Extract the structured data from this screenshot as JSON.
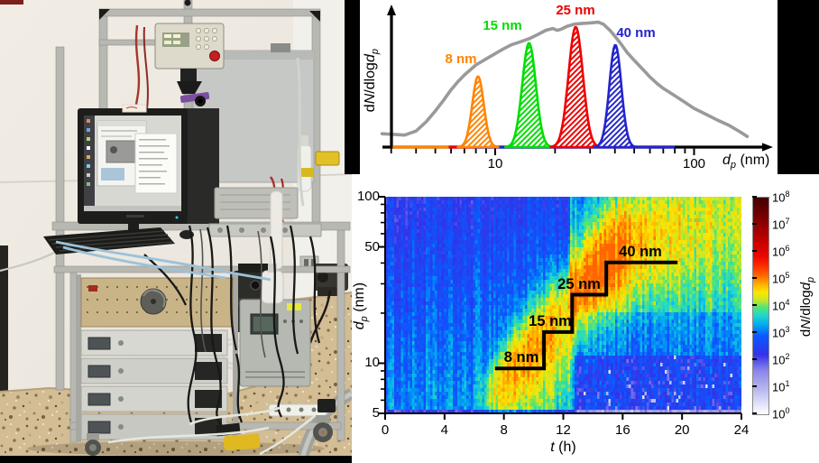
{
  "photo": {
    "description": "Photograph of a laboratory aerosol measurement setup: aluminium-profile cart with monitor, keyboard, control box, rack-mounted instruments, CPC, tubing and cables on a terrazzo floor"
  },
  "chart_data": [
    {
      "id": "size_distribution",
      "type": "line",
      "title": "",
      "xlabel": "{i:d}{sub:p} (nm)",
      "ylabel": "d{i:N}/dlog{i:d}{sub:p}",
      "x_scale": "log",
      "x_range": [
        2.7,
        200
      ],
      "x_major_ticks": [
        10,
        100
      ],
      "x_minor_ticks": [
        3,
        4,
        5,
        6,
        7,
        8,
        9,
        20,
        30,
        40,
        50,
        60,
        70,
        80,
        90
      ],
      "grid": false,
      "gray_curve": {
        "name": "ambient total size distribution",
        "color": "#9a9a9a",
        "points": [
          [
            2.7,
            0.1
          ],
          [
            3.1,
            0.095
          ],
          [
            3.5,
            0.09
          ],
          [
            4,
            0.12
          ],
          [
            4.5,
            0.19
          ],
          [
            5,
            0.27
          ],
          [
            5.5,
            0.35
          ],
          [
            6,
            0.43
          ],
          [
            6.5,
            0.49
          ],
          [
            7,
            0.54
          ],
          [
            8,
            0.615
          ],
          [
            9,
            0.66
          ],
          [
            10,
            0.7
          ],
          [
            11,
            0.735
          ],
          [
            12,
            0.765
          ],
          [
            13.5,
            0.79
          ],
          [
            15,
            0.815
          ],
          [
            16.5,
            0.845
          ],
          [
            18,
            0.875
          ],
          [
            19.5,
            0.888
          ],
          [
            20.5,
            0.874
          ],
          [
            21.5,
            0.883
          ],
          [
            23,
            0.905
          ],
          [
            25,
            0.92
          ],
          [
            27,
            0.925
          ],
          [
            30,
            0.93
          ],
          [
            33,
            0.935
          ],
          [
            35,
            0.92
          ],
          [
            38,
            0.87
          ],
          [
            40,
            0.83
          ],
          [
            43,
            0.77
          ],
          [
            46,
            0.71
          ],
          [
            50,
            0.65
          ],
          [
            55,
            0.585
          ],
          [
            60,
            0.525
          ],
          [
            65,
            0.478
          ],
          [
            70,
            0.44
          ],
          [
            80,
            0.385
          ],
          [
            90,
            0.335
          ],
          [
            100,
            0.29
          ],
          [
            115,
            0.245
          ],
          [
            130,
            0.205
          ],
          [
            150,
            0.163
          ],
          [
            170,
            0.115
          ],
          [
            185,
            0.08
          ]
        ]
      },
      "peaks": [
        {
          "label": "8 nm",
          "center_nm": 8.2,
          "rel_height": 0.53,
          "sigma_log": 0.029,
          "color": "#ff8400",
          "label_x": 112,
          "label_y": 70
        },
        {
          "label": "15 nm",
          "center_nm": 14.8,
          "rel_height": 0.78,
          "sigma_log": 0.034,
          "color": "#00dd00",
          "label_x": 158,
          "label_y": 33
        },
        {
          "label": "25 nm",
          "center_nm": 25.4,
          "rel_height": 0.9,
          "sigma_log": 0.036,
          "color": "#ee0000",
          "label_x": 239,
          "label_y": 16
        },
        {
          "label": "40 nm",
          "center_nm": 40.2,
          "rel_height": 0.765,
          "sigma_log": 0.03,
          "color": "#2424cc",
          "label_x": 306,
          "label_y": 41
        }
      ],
      "baseline_segments": [
        {
          "dp0": 3.05,
          "dp1": 5.85,
          "color": "#ff8400"
        },
        {
          "dp0": 5.85,
          "dp1": 7.8,
          "color": "#ee0000"
        },
        {
          "dp0": 7.8,
          "dp1": 80,
          "color": "#2424cc"
        }
      ]
    },
    {
      "id": "banana_plot",
      "type": "heatmap",
      "xlabel": "{i:t} (h)",
      "ylabel": "{i:d}{sub:p} (nm)",
      "x_range": [
        0,
        24
      ],
      "x_ticks": [
        0,
        4,
        8,
        12,
        16,
        20,
        24
      ],
      "y_scale": "log",
      "y_range": [
        5,
        100
      ],
      "y_major_ticks": [
        5,
        10,
        50,
        100
      ],
      "y_minor_ticks": [
        6,
        7,
        8,
        9,
        20,
        30,
        40,
        60,
        70,
        80,
        90
      ],
      "colorbar": {
        "label": "d{i:N}/dlog{i:d}{sub:p}",
        "tick_exponents": [
          8,
          7,
          6,
          5,
          4,
          3,
          2,
          1,
          0
        ],
        "range_exp": [
          0,
          8
        ]
      },
      "colormap_stops": [
        [
          0,
          "#ffffff"
        ],
        [
          0.9,
          "#b9b9ef"
        ],
        [
          1.6,
          "#8c86ea"
        ],
        [
          2.2,
          "#3232e8"
        ],
        [
          2.9,
          "#0a5aff"
        ],
        [
          3.3,
          "#00aaf0"
        ],
        [
          3.65,
          "#22d6ce"
        ],
        [
          3.95,
          "#52e673"
        ],
        [
          4.2,
          "#c3e629"
        ],
        [
          4.5,
          "#ffe600"
        ],
        [
          4.8,
          "#ffb000"
        ],
        [
          5.1,
          "#ff6e00"
        ],
        [
          5.45,
          "#ff3000"
        ],
        [
          5.8,
          "#ef0800"
        ],
        [
          6.4,
          "#c30000"
        ],
        [
          7.1,
          "#8a0000"
        ],
        [
          8,
          "#400000"
        ]
      ],
      "growth_steps": [
        {
          "label": "8 nm",
          "dp_nm": 9.3,
          "t_start": 7.4,
          "t_end": 10.7,
          "label_x": 188,
          "label_y": 208
        },
        {
          "label": "15 nm",
          "dp_nm": 15.4,
          "t_start": 10.7,
          "t_end": 12.6,
          "label_x": 220,
          "label_y": 168
        },
        {
          "label": "25 nm",
          "dp_nm": 25.8,
          "t_start": 12.6,
          "t_end": 14.9,
          "label_x": 252,
          "label_y": 127
        },
        {
          "label": "40 nm",
          "dp_nm": 40.3,
          "t_start": 14.9,
          "t_end": 19.7,
          "label_x": 320,
          "label_y": 91
        }
      ],
      "plume": {
        "path_t_dp": [
          [
            6.6,
            6.2
          ],
          [
            8,
            8.5
          ],
          [
            9,
            11
          ],
          [
            10,
            13.5
          ],
          [
            11,
            17
          ],
          [
            12,
            21
          ],
          [
            13,
            26
          ],
          [
            14,
            32
          ],
          [
            15,
            39
          ],
          [
            16,
            45
          ],
          [
            17,
            50
          ],
          [
            18,
            54
          ],
          [
            20,
            60
          ],
          [
            22,
            66
          ],
          [
            24,
            72
          ]
        ],
        "amp": [
          [
            6.2,
            0
          ],
          [
            7,
            0.9
          ],
          [
            8,
            1.5
          ],
          [
            9,
            1.75
          ],
          [
            10,
            1.7
          ],
          [
            11,
            1.65
          ],
          [
            12,
            1.7
          ],
          [
            13,
            1.75
          ],
          [
            14,
            1.85
          ],
          [
            15,
            1.95
          ],
          [
            16,
            1.85
          ],
          [
            17,
            1.6
          ],
          [
            18,
            1.45
          ],
          [
            20,
            1.35
          ],
          [
            22,
            1.3
          ],
          [
            24,
            1.25
          ]
        ],
        "width": [
          [
            7,
            0.13
          ],
          [
            9,
            0.16
          ],
          [
            11,
            0.18
          ],
          [
            13,
            0.2
          ],
          [
            15,
            0.24
          ],
          [
            17,
            0.3
          ],
          [
            20,
            0.38
          ],
          [
            24,
            0.48
          ]
        ]
      },
      "render": {
        "base_lo": 3.25,
        "base_hi": 2.45,
        "v_max": 5.15,
        "cols": 158,
        "rows": 60,
        "seed": 1234
      }
    }
  ]
}
